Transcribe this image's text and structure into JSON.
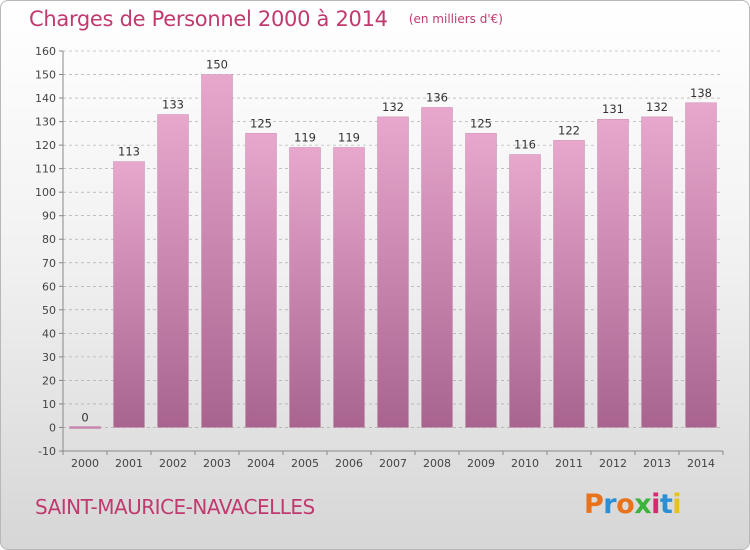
{
  "title": "Charges de Personnel 2000 à 2014",
  "subtitle": "(en milliers d'€)",
  "commune": "SAINT-MAURICE-NAVACELLES",
  "logo": {
    "text": "Proxiti",
    "colors": [
      "#e8731c",
      "#2a8fd4",
      "#e8731c",
      "#3cb43c",
      "#d62a6e",
      "#2a8fd4",
      "#e8c21c"
    ]
  },
  "colors": {
    "bar_top": "#e8a7cd",
    "bar_bottom": "#a8648f",
    "text": "#c03a70",
    "grid": "#a0a0a0"
  },
  "chart_data": {
    "type": "bar",
    "categories": [
      "2000",
      "2001",
      "2002",
      "2003",
      "2004",
      "2005",
      "2006",
      "2007",
      "2008",
      "2009",
      "2010",
      "2011",
      "2012",
      "2013",
      "2014"
    ],
    "values": [
      0,
      113,
      133,
      150,
      125,
      119,
      119,
      132,
      136,
      125,
      116,
      122,
      131,
      132,
      138
    ],
    "ylim": [
      -10,
      160
    ],
    "yticks": [
      -10,
      0,
      10,
      20,
      30,
      40,
      50,
      60,
      70,
      80,
      90,
      100,
      110,
      120,
      130,
      140,
      150,
      160
    ],
    "grid": true,
    "data_labels": true
  }
}
